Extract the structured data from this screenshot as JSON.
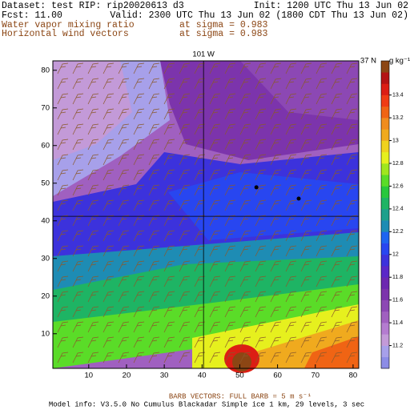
{
  "header": {
    "dataset": "Dataset: test   RIP: rip20020613  d3",
    "init": "Init: 1200 UTC Thu 13 Jun 02",
    "fcst": "Fcst:     11.00",
    "valid": "Valid: 2300 UTC Thu 13 Jun 02 (1800 CDT Thu 13 Jun 02)",
    "field1": "Water vapor mixing ratio",
    "field1_level": "at sigma = 0.983",
    "field2": "Horizontal wind vectors",
    "field2_level": "at sigma = 0.983"
  },
  "chart_data": {
    "type": "contour",
    "xlim": [
      0.5,
      81.5
    ],
    "ylim": [
      0.8,
      82.5
    ],
    "xticks": [
      10,
      20,
      30,
      40,
      50,
      60,
      70,
      80
    ],
    "yticks": [
      10,
      20,
      30,
      40,
      50,
      60,
      70,
      80
    ],
    "crosshair": {
      "x": 40.4,
      "y": 41.2,
      "x_label": "101 W",
      "y_label": "37 N"
    },
    "points": {
      "x": [
        54.4,
        65.6
      ],
      "y": [
        48.9,
        45.9
      ]
    },
    "colorbar": {
      "unit": "g kg⁻¹",
      "clim": [
        11.0,
        13.7
      ],
      "ticks": [
        11.2,
        11.4,
        11.6,
        11.8,
        12,
        12.2,
        12.4,
        12.6,
        12.8,
        13,
        13.2,
        13.4
      ],
      "colors": [
        "#8c8ce6",
        "#a7a0ea",
        "#c39ad8",
        "#b47cd0",
        "#a060c0",
        "#8c48b4",
        "#7c34ac",
        "#6c28b0",
        "#5a28c8",
        "#3c32dc",
        "#2846f0",
        "#1e64f0",
        "#1e8cb4",
        "#1ea08c",
        "#1eb464",
        "#28c83c",
        "#5adc28",
        "#a0e61e",
        "#e6f01e",
        "#f0d21e",
        "#f0aa1e",
        "#f08c1e",
        "#f06414",
        "#f03c14",
        "#dc1e14",
        "#b41414",
        "#8c4614"
      ]
    },
    "barb_note": "BARB VECTORS:  FULL BARB = 5 m s⁻¹",
    "model_info": "Model info: V3.5.0  No Cumulus  Blackadar  Simple ice    1 km,  29 levels,    3 sec"
  }
}
